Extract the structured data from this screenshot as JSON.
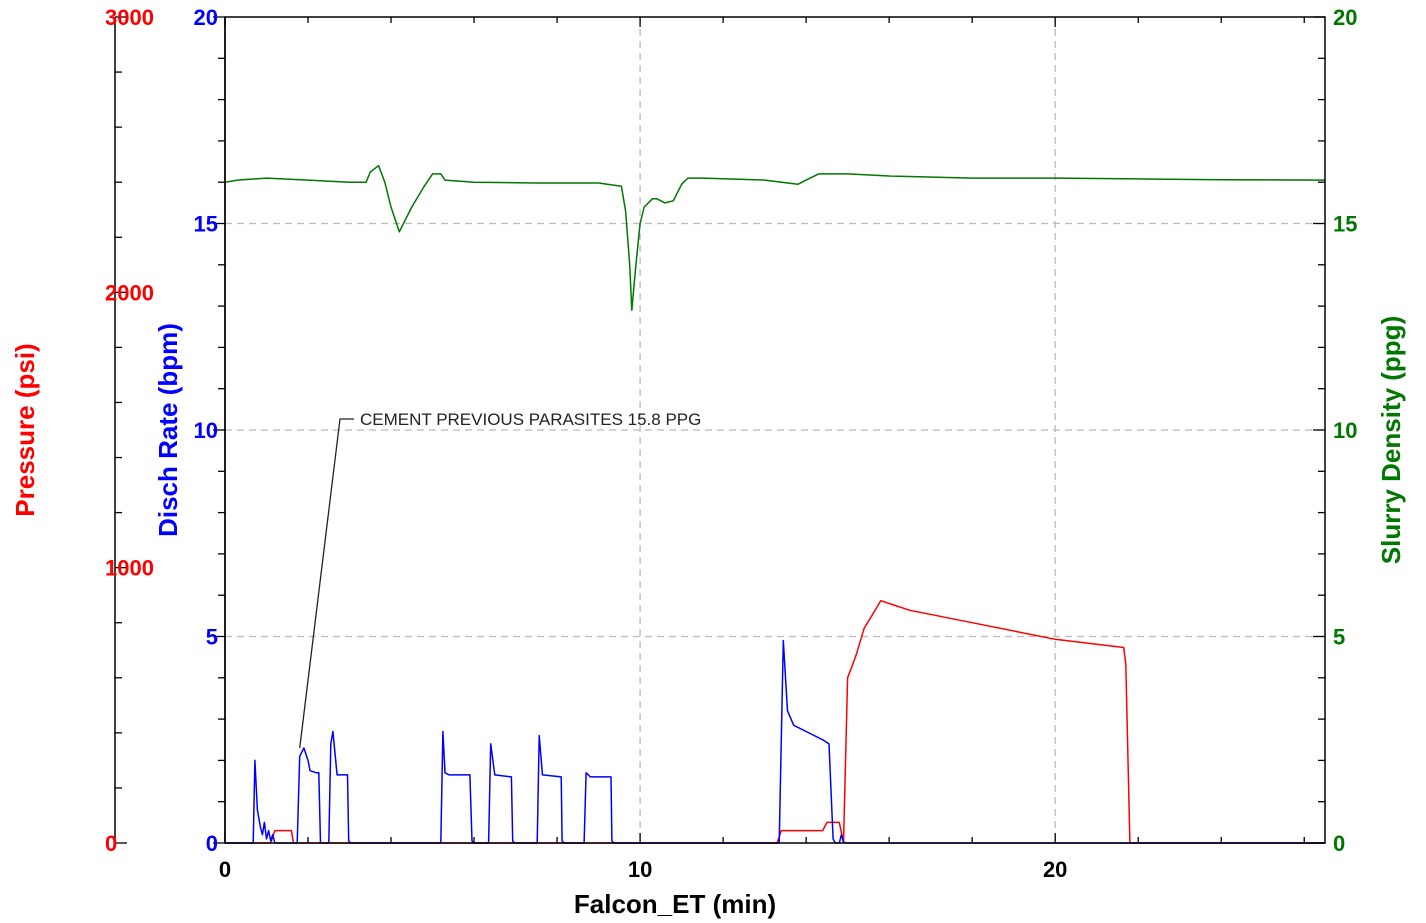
{
  "chart_data": {
    "type": "line",
    "xlabel": "Falcon_ET (min)",
    "xlim": [
      0,
      26.5
    ],
    "x_ticks": [
      "0",
      "10",
      "20"
    ],
    "grid": true,
    "colors": {
      "pressure": "#ff0000",
      "rate": "#0000ff",
      "density": "#007700",
      "grid": "#bbbbbb",
      "frame": "#000000"
    },
    "axes": {
      "pressure": {
        "label": "Pressure (psi)",
        "ylim": [
          0,
          3000
        ],
        "ticks": [
          "0",
          "1000",
          "2000",
          "3000"
        ]
      },
      "rate": {
        "label": "Disch Rate (bpm)",
        "ylim": [
          0,
          20
        ],
        "ticks": [
          "0",
          "5",
          "10",
          "15",
          "20"
        ]
      },
      "density": {
        "label": "Slurry Density (ppg)",
        "ylim": [
          0,
          20
        ],
        "ticks": [
          "0",
          "5",
          "10",
          "15",
          "20"
        ]
      }
    },
    "annotation": {
      "text": "CEMENT PREVIOUS PARASITES 15.8 PPG",
      "x": 1.8,
      "y": 2.3
    },
    "series": [
      {
        "name": "Pressure (psi)",
        "axis": "pressure",
        "x": [
          0,
          1.1,
          1.2,
          1.6,
          1.65,
          13.3,
          13.4,
          14.4,
          14.5,
          14.8,
          14.9,
          15.0,
          15.1,
          15.2,
          15.4,
          15.6,
          15.8,
          16.5,
          18,
          20,
          21.65,
          21.7,
          21.8,
          26.5
        ],
        "values": [
          0,
          0,
          45,
          45,
          0,
          0,
          45,
          45,
          75,
          75,
          0,
          600,
          640,
          680,
          780,
          830,
          880,
          845,
          800,
          740,
          710,
          650,
          0,
          0
        ]
      },
      {
        "name": "Disch Rate (bpm)",
        "axis": "rate",
        "x": [
          0,
          0.68,
          0.72,
          0.78,
          0.85,
          0.9,
          0.95,
          1.0,
          1.05,
          1.1,
          1.15,
          1.2,
          1.25,
          1.74,
          1.8,
          1.9,
          2.0,
          2.05,
          2.2,
          2.26,
          2.3,
          2.5,
          2.55,
          2.6,
          2.7,
          2.95,
          2.98,
          3.02,
          5.2,
          5.25,
          5.3,
          5.4,
          5.9,
          5.95,
          6.0,
          6.35,
          6.4,
          6.5,
          6.9,
          6.93,
          6.98,
          7.52,
          7.57,
          7.65,
          8.1,
          8.12,
          8.17,
          8.65,
          8.7,
          8.8,
          9.3,
          9.32,
          9.37,
          13.35,
          13.45,
          13.55,
          13.7,
          14.0,
          14.4,
          14.55,
          14.65,
          14.7,
          14.8,
          14.85,
          14.9,
          14.95,
          26.5
        ],
        "values": [
          0,
          0,
          2,
          0.8,
          0.4,
          0.2,
          0.5,
          0.1,
          0.3,
          0.05,
          0.2,
          0,
          0,
          0,
          2.1,
          2.3,
          2.0,
          1.75,
          1.7,
          1.7,
          0,
          0,
          2.4,
          2.7,
          1.65,
          1.65,
          0.05,
          0,
          0,
          2.7,
          1.7,
          1.65,
          1.65,
          0.05,
          0,
          0,
          2.4,
          1.65,
          1.6,
          0.05,
          0,
          0,
          2.6,
          1.65,
          1.6,
          0.05,
          0,
          0,
          1.7,
          1.6,
          1.6,
          0.05,
          0,
          0,
          4.9,
          3.2,
          2.85,
          2.7,
          2.5,
          2.4,
          0.1,
          0,
          0,
          0.2,
          0.03,
          0,
          0
        ]
      },
      {
        "name": "Slurry Density (ppg)",
        "axis": "density",
        "x": [
          0,
          0.3,
          1.0,
          2.0,
          3.0,
          3.4,
          3.5,
          3.7,
          3.85,
          4.0,
          4.2,
          4.5,
          4.8,
          5.0,
          5.2,
          5.3,
          6.0,
          7.5,
          9.0,
          9.55,
          9.65,
          9.75,
          9.8,
          9.9,
          10.0,
          10.1,
          10.3,
          10.4,
          10.6,
          10.8,
          11.0,
          11.15,
          11.5,
          13.0,
          13.8,
          14.0,
          14.3,
          15.0,
          16.0,
          18.0,
          20.0,
          22.0,
          24.0,
          26.5
        ],
        "values": [
          16.0,
          16.05,
          16.1,
          16.05,
          16.0,
          16.0,
          16.25,
          16.4,
          16.0,
          15.4,
          14.8,
          15.4,
          15.9,
          16.2,
          16.2,
          16.05,
          16.0,
          15.98,
          15.98,
          15.9,
          15.3,
          14.0,
          12.9,
          14.0,
          15.0,
          15.4,
          15.6,
          15.6,
          15.5,
          15.55,
          15.95,
          16.1,
          16.1,
          16.05,
          15.95,
          16.05,
          16.2,
          16.2,
          16.15,
          16.1,
          16.1,
          16.08,
          16.06,
          16.05
        ]
      }
    ]
  }
}
